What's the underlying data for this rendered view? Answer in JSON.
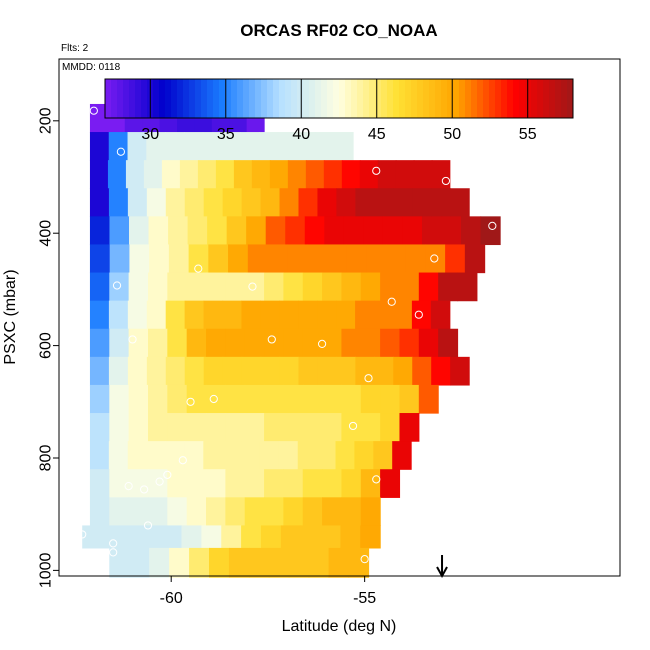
{
  "header": {
    "flights_note": "Flts: 2",
    "date_note": "MMDD: 0118"
  },
  "chart_data": {
    "type": "heatmap",
    "title": "ORCAS RF02 CO_NOAA",
    "xlabel": "Latitude (deg N)",
    "ylabel": "PSXC (mbar)",
    "xlim": [
      -62.9,
      -48.4
    ],
    "ylim": [
      1010,
      90
    ],
    "x_ticks": [
      {
        "value": -60,
        "label": "-60"
      },
      {
        "value": -55,
        "label": "-55"
      }
    ],
    "y_ticks": [
      {
        "value": 200,
        "label": "200"
      },
      {
        "value": 400,
        "label": "400"
      },
      {
        "value": 600,
        "label": "600"
      },
      {
        "value": 800,
        "label": "800"
      },
      {
        "value": 1000,
        "label": "1000"
      }
    ],
    "colorbar": {
      "range": [
        27,
        58
      ],
      "ticks": [
        30,
        35,
        40,
        45,
        50,
        55
      ],
      "tick_labels": [
        "30",
        "35",
        "40",
        "45",
        "50",
        "55"
      ],
      "colors": [
        "#7a1cf2",
        "#0000cc",
        "#1a7cff",
        "#b6e0ff",
        "#ffffe0",
        "#ffe033",
        "#ffa500",
        "#ff0000",
        "#a01818"
      ]
    },
    "cell_width_deg": 0.5,
    "pressure_layers": [
      {
        "p_top": 170,
        "p_bot": 220,
        "x_start": -62.1,
        "x_end": -57.6,
        "values": [
          27,
          27,
          28,
          28,
          28.5,
          29,
          29,
          28.5,
          28.5,
          27.5
        ]
      },
      {
        "p_top": 220,
        "p_bot": 270,
        "x_start": -62.1,
        "x_end": -55.3,
        "values": [
          30,
          35,
          40,
          41,
          41,
          41,
          41,
          41,
          41,
          41,
          41,
          41,
          41,
          41
        ]
      },
      {
        "p_top": 270,
        "p_bot": 320,
        "x_start": -62.1,
        "x_end": -52.8,
        "values": [
          30,
          35,
          40,
          41,
          43,
          44,
          45,
          46,
          48,
          49,
          50,
          51,
          52,
          53,
          54,
          55,
          56,
          56,
          56,
          56
        ]
      },
      {
        "p_top": 320,
        "p_bot": 370,
        "x_start": -62.1,
        "x_end": -52.3,
        "values": [
          30,
          35,
          40,
          42,
          44,
          45,
          46,
          47,
          48,
          49,
          51,
          53,
          55,
          56,
          57,
          57,
          57,
          57,
          57,
          57
        ]
      },
      {
        "p_top": 370,
        "p_bot": 420,
        "x_start": -62.1,
        "x_end": -51.5,
        "values": [
          32,
          36,
          41,
          43,
          44,
          45,
          46,
          48,
          50,
          52,
          53,
          54,
          55,
          55,
          55,
          55,
          55,
          56,
          56,
          57,
          58
        ]
      },
      {
        "p_top": 420,
        "p_bot": 470,
        "x_start": -62.1,
        "x_end": -51.9,
        "values": [
          33,
          37,
          42,
          43,
          44,
          46,
          48,
          50,
          51,
          51,
          51,
          51,
          51,
          51,
          51,
          51,
          51,
          51,
          53,
          57
        ]
      },
      {
        "p_top": 470,
        "p_bot": 520,
        "x_start": -62.1,
        "x_end": -52.1,
        "values": [
          34,
          38,
          42,
          43,
          44,
          44,
          44,
          44,
          44,
          45,
          46,
          47,
          48,
          49,
          50,
          51,
          51,
          54,
          57,
          57
        ]
      },
      {
        "p_top": 520,
        "p_bot": 570,
        "x_start": -62.1,
        "x_end": -52.8,
        "values": [
          35,
          39,
          42,
          43,
          46,
          48,
          49,
          49,
          50,
          50,
          50,
          50,
          50,
          50,
          51,
          51,
          51,
          54,
          56
        ]
      },
      {
        "p_top": 570,
        "p_bot": 620,
        "x_start": -62.1,
        "x_end": -52.6,
        "values": [
          36,
          40,
          43,
          44,
          46,
          49,
          50,
          50,
          50,
          50,
          50,
          50,
          50,
          51,
          51,
          52,
          53,
          55,
          57
        ]
      },
      {
        "p_top": 620,
        "p_bot": 670,
        "x_start": -62.1,
        "x_end": -52.3,
        "values": [
          37,
          41,
          43,
          44,
          45,
          46,
          47,
          47,
          47,
          47,
          47,
          48,
          48,
          48,
          49,
          49,
          50,
          52,
          54,
          56
        ]
      },
      {
        "p_top": 670,
        "p_bot": 720,
        "x_start": -62.1,
        "x_end": -53.1,
        "values": [
          38,
          42,
          43,
          44,
          45,
          46,
          46,
          46,
          46,
          46,
          46,
          46,
          46,
          46,
          47,
          47,
          48,
          52
        ]
      },
      {
        "p_top": 720,
        "p_bot": 770,
        "x_start": -62.1,
        "x_end": -53.6,
        "values": [
          39,
          42,
          43,
          44,
          44,
          44,
          44,
          44,
          44,
          45,
          45,
          45,
          45,
          46,
          46,
          47,
          55
        ]
      },
      {
        "p_top": 770,
        "p_bot": 820,
        "x_start": -62.1,
        "x_end": -53.8,
        "values": [
          39,
          42,
          43,
          43,
          43,
          43,
          44,
          44,
          44,
          44,
          44,
          45,
          45,
          46,
          47,
          48,
          55
        ]
      },
      {
        "p_top": 820,
        "p_bot": 870,
        "x_start": -62.1,
        "x_end": -54.1,
        "values": [
          40,
          42,
          42,
          42,
          43,
          43,
          43,
          44,
          44,
          45,
          45,
          46,
          46,
          47,
          49,
          55
        ]
      },
      {
        "p_top": 870,
        "p_bot": 920,
        "x_start": -62.1,
        "x_end": -54.6,
        "values": [
          40,
          41,
          41,
          41,
          42,
          43,
          44,
          45,
          46,
          46,
          47,
          48,
          49,
          49,
          50
        ]
      },
      {
        "p_top": 920,
        "p_bot": 960,
        "x_start": -62.3,
        "x_end": -54.6,
        "values": [
          40,
          40,
          40,
          40,
          40,
          41,
          42,
          44,
          46,
          47,
          48,
          48,
          48,
          49,
          50
        ]
      },
      {
        "p_top": 960,
        "p_bot": 1012,
        "x_start": -61.6,
        "x_end": -54.9,
        "values": [
          40,
          40,
          41,
          43,
          45,
          47,
          48,
          48,
          48,
          48,
          48,
          49,
          49
        ]
      }
    ],
    "points": [
      {
        "lat": -62.0,
        "p": 182
      },
      {
        "lat": -57.6,
        "p": 178
      },
      {
        "lat": -61.3,
        "p": 255
      },
      {
        "lat": -54.7,
        "p": 289
      },
      {
        "lat": -52.9,
        "p": 307
      },
      {
        "lat": -51.7,
        "p": 387
      },
      {
        "lat": -53.2,
        "p": 445
      },
      {
        "lat": -59.3,
        "p": 463
      },
      {
        "lat": -61.4,
        "p": 493
      },
      {
        "lat": -57.9,
        "p": 495
      },
      {
        "lat": -54.3,
        "p": 522
      },
      {
        "lat": -53.6,
        "p": 545
      },
      {
        "lat": -61.0,
        "p": 589
      },
      {
        "lat": -57.4,
        "p": 589
      },
      {
        "lat": -56.1,
        "p": 597
      },
      {
        "lat": -54.9,
        "p": 658
      },
      {
        "lat": -59.5,
        "p": 700
      },
      {
        "lat": -58.9,
        "p": 695
      },
      {
        "lat": -55.3,
        "p": 743
      },
      {
        "lat": -59.7,
        "p": 804
      },
      {
        "lat": -60.1,
        "p": 830
      },
      {
        "lat": -60.3,
        "p": 842
      },
      {
        "lat": -61.1,
        "p": 850
      },
      {
        "lat": -60.7,
        "p": 856
      },
      {
        "lat": -54.7,
        "p": 838
      },
      {
        "lat": -60.6,
        "p": 920
      },
      {
        "lat": -62.3,
        "p": 936
      },
      {
        "lat": -61.5,
        "p": 952
      },
      {
        "lat": -61.5,
        "p": 968
      },
      {
        "lat": -55.0,
        "p": 980
      }
    ],
    "marker": {
      "type": "arrow-down",
      "lat": -53.0
    }
  }
}
